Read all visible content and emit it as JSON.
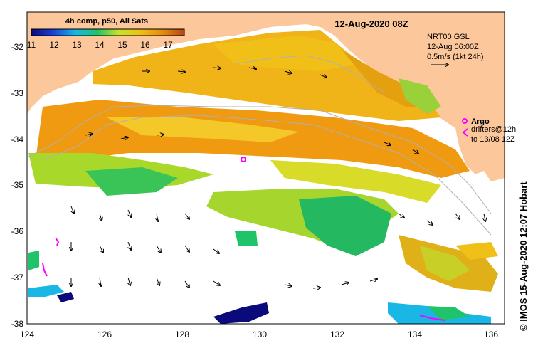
{
  "map": {
    "title": "12-Aug-2020 08Z",
    "credit": "©  IMOS 15-Aug-2020 12:07 Hobart",
    "colorbar": {
      "title": "4h comp, p50, All Sats",
      "tick_labels": [
        "11",
        "12",
        "13",
        "14",
        "15",
        "16",
        "17"
      ],
      "gradient": [
        "#0a0a7a",
        "#1a3fd6",
        "#18b7e6",
        "#1fc36a",
        "#c8e02a",
        "#f0c018",
        "#e38a0e",
        "#b9460e"
      ]
    },
    "info": {
      "line1": "NRT00 GSL",
      "line2": "12-Aug 06:00Z",
      "line3": "0.5m/s (1kt 24h)"
    },
    "legend": {
      "argo_label": "Argo",
      "drifters_line1": "drifters@12h",
      "drifters_line2": "to 13/08 12Z"
    },
    "x_ticks": [
      "124",
      "126",
      "128",
      "130",
      "132",
      "134",
      "136"
    ],
    "y_ticks": [
      "-32",
      "-33",
      "-34",
      "-35",
      "-36",
      "-37",
      "-38"
    ],
    "colors": {
      "land": "#fcc79a",
      "argo": "#ff00ff",
      "frame": "#000000"
    }
  }
}
